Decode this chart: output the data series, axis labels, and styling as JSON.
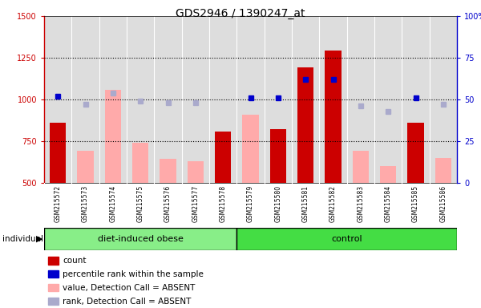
{
  "title": "GDS2946 / 1390247_at",
  "samples": [
    "GSM215572",
    "GSM215573",
    "GSM215574",
    "GSM215575",
    "GSM215576",
    "GSM215577",
    "GSM215578",
    "GSM215579",
    "GSM215580",
    "GSM215581",
    "GSM215582",
    "GSM215583",
    "GSM215584",
    "GSM215585",
    "GSM215586"
  ],
  "count_values": [
    860,
    null,
    null,
    null,
    null,
    null,
    810,
    null,
    820,
    1190,
    1295,
    null,
    null,
    860,
    null
  ],
  "count_absent_values": [
    null,
    690,
    1060,
    740,
    645,
    630,
    null,
    910,
    null,
    null,
    null,
    690,
    600,
    null,
    650
  ],
  "rank_present_values": [
    52,
    null,
    null,
    null,
    null,
    null,
    null,
    51,
    51,
    62,
    62,
    null,
    null,
    51,
    null
  ],
  "rank_absent_values": [
    null,
    47,
    54,
    49,
    48,
    48,
    null,
    null,
    null,
    null,
    null,
    46,
    43,
    null,
    47
  ],
  "ylim": [
    500,
    1500
  ],
  "yticks": [
    500,
    750,
    1000,
    1250,
    1500
  ],
  "y2lim": [
    0,
    100
  ],
  "y2ticks": [
    0,
    25,
    50,
    75,
    100
  ],
  "count_color": "#cc0000",
  "count_absent_color": "#ffaaaa",
  "rank_present_color": "#0000cc",
  "rank_absent_color": "#aaaacc",
  "group1_color": "#88ee88",
  "group2_color": "#44dd44",
  "bg_color": "#cccccc",
  "col_bg": "#dddddd",
  "white": "#ffffff",
  "n_group1": 7,
  "n_group2": 8,
  "group1_label": "diet-induced obese",
  "group2_label": "control",
  "legend_items": [
    "count",
    "percentile rank within the sample",
    "value, Detection Call = ABSENT",
    "rank, Detection Call = ABSENT"
  ]
}
